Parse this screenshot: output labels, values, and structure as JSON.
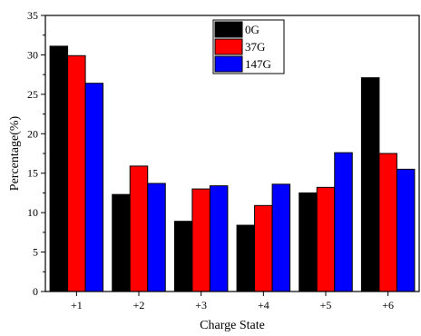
{
  "chart_data": {
    "type": "bar",
    "xlabel": "Charge State",
    "ylabel": "Percentage(%)",
    "categories": [
      "+1",
      "+2",
      "+3",
      "+4",
      "+5",
      "+6"
    ],
    "ylim": [
      0,
      35
    ],
    "yticks": [
      0,
      5,
      10,
      15,
      20,
      25,
      30,
      35
    ],
    "grid": false,
    "legend_position": "top-center",
    "series": [
      {
        "name": "0G",
        "color": "#000000",
        "values": [
          31.1,
          12.3,
          8.9,
          8.4,
          12.5,
          27.1
        ]
      },
      {
        "name": "37G",
        "color": "#ff0000",
        "values": [
          29.9,
          15.9,
          13.0,
          10.9,
          13.2,
          17.5
        ]
      },
      {
        "name": "147G",
        "color": "#0000ff",
        "values": [
          26.4,
          13.7,
          13.4,
          13.6,
          17.6,
          15.5
        ]
      }
    ]
  }
}
